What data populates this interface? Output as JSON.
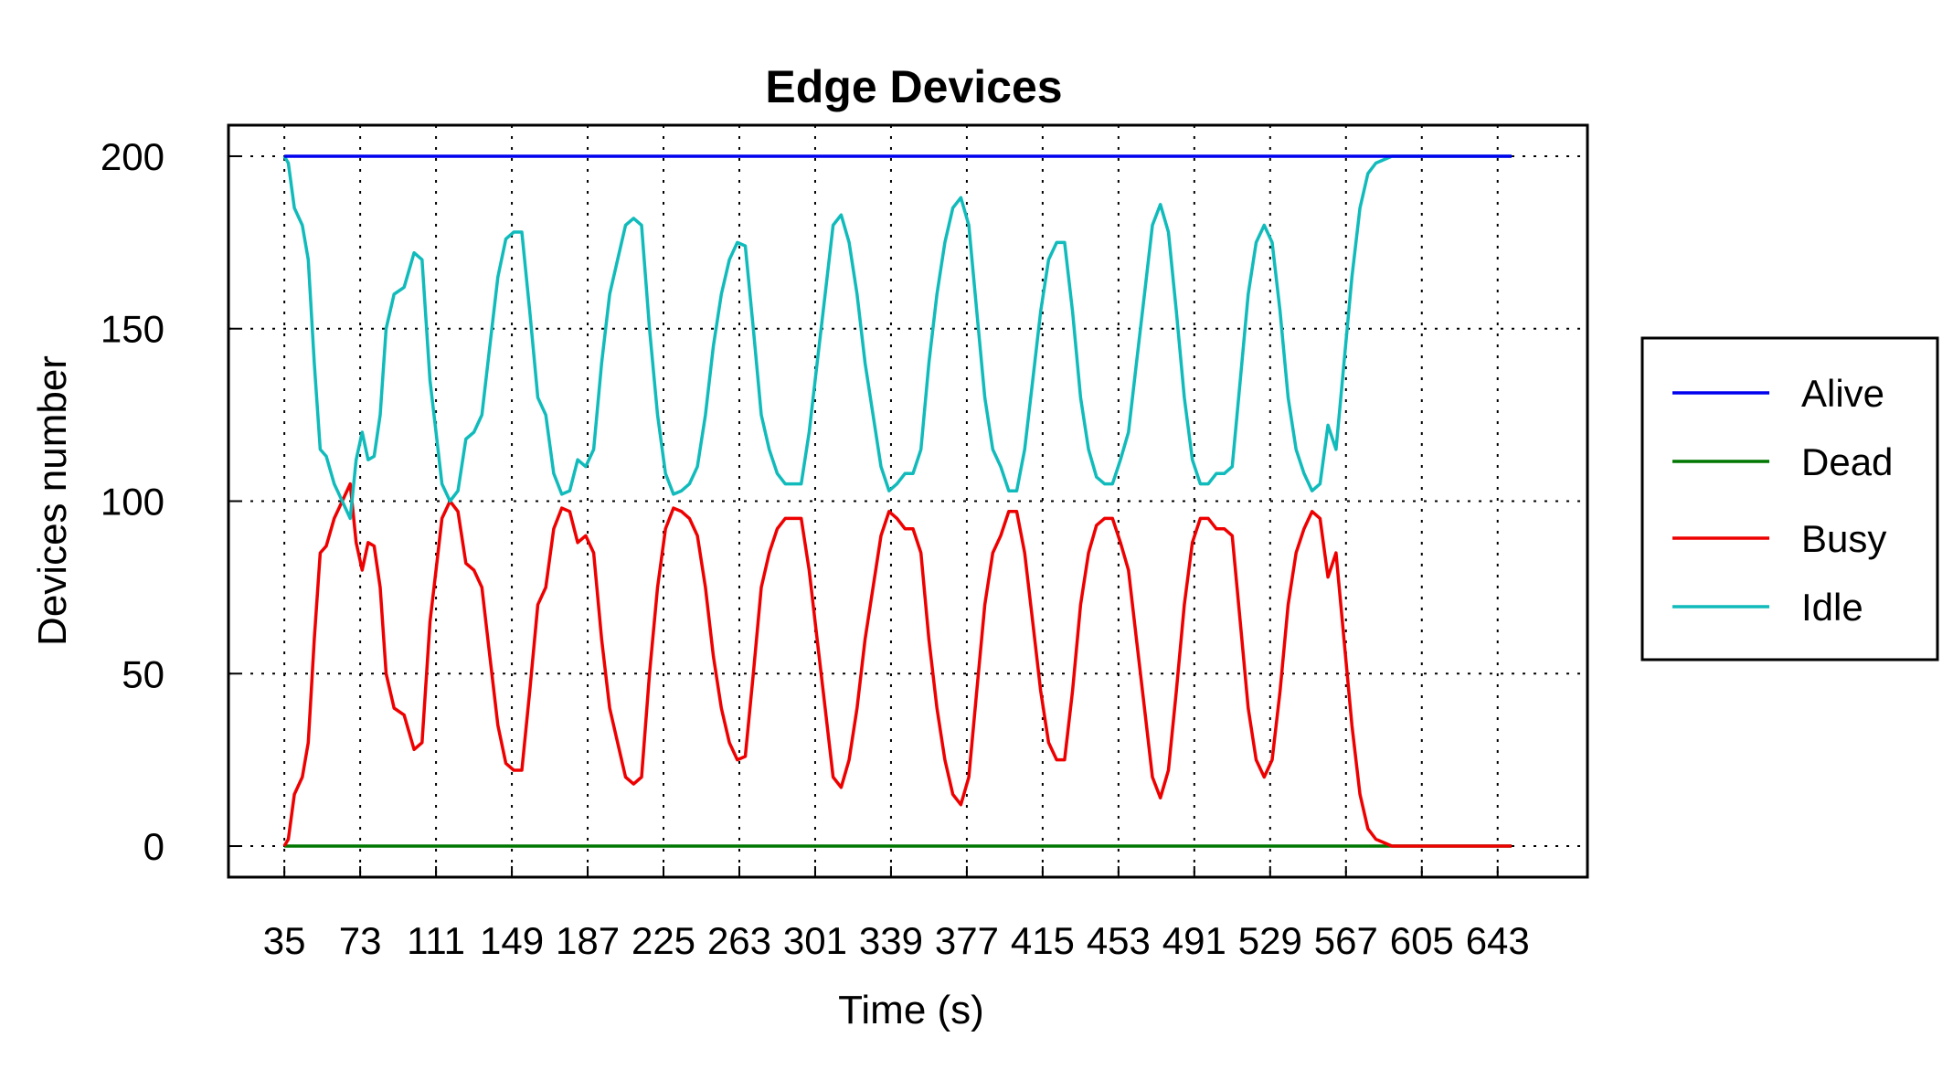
{
  "chart_data": {
    "type": "line",
    "title": "Edge Devices",
    "xlabel": "Time (s)",
    "ylabel": "Devices number",
    "x_tick_labels": [
      "35",
      "73",
      "111",
      "149",
      "187",
      "225",
      "263",
      "301",
      "339",
      "377",
      "415",
      "453",
      "491",
      "529",
      "567",
      "605",
      "643"
    ],
    "x_ticks": [
      35,
      73,
      111,
      149,
      187,
      225,
      263,
      301,
      339,
      377,
      415,
      453,
      491,
      529,
      567,
      605,
      643
    ],
    "y_tick_labels": [
      "0",
      "50",
      "100",
      "150",
      "200"
    ],
    "y_ticks": [
      0,
      50,
      100,
      150,
      200
    ],
    "xlim": [
      7,
      688
    ],
    "ylim": [
      -9,
      209
    ],
    "grid": true,
    "legend_position": "right",
    "series": [
      {
        "name": "Alive",
        "color": "#0000ee",
        "x": [
          35,
          650
        ],
        "y": [
          200,
          200
        ]
      },
      {
        "name": "Dead",
        "color": "#007700",
        "x": [
          35,
          650
        ],
        "y": [
          0,
          0
        ]
      },
      {
        "name": "Busy",
        "color": "#ee0000",
        "x": [
          35,
          37,
          40,
          44,
          47,
          50,
          53,
          56,
          60,
          64,
          68,
          71,
          74,
          77,
          80,
          83,
          86,
          90,
          95,
          100,
          104,
          108,
          111,
          114,
          118,
          122,
          126,
          130,
          134,
          138,
          142,
          146,
          150,
          154,
          158,
          162,
          166,
          170,
          174,
          178,
          182,
          186,
          190,
          194,
          198,
          202,
          206,
          210,
          214,
          218,
          222,
          226,
          230,
          234,
          238,
          242,
          246,
          250,
          254,
          258,
          262,
          266,
          270,
          274,
          278,
          282,
          286,
          290,
          294,
          298,
          302,
          306,
          310,
          314,
          318,
          322,
          326,
          330,
          334,
          338,
          342,
          346,
          350,
          354,
          358,
          362,
          366,
          370,
          374,
          378,
          382,
          386,
          390,
          394,
          398,
          402,
          406,
          410,
          414,
          418,
          422,
          426,
          430,
          434,
          438,
          442,
          446,
          450,
          454,
          458,
          462,
          466,
          470,
          474,
          478,
          482,
          486,
          490,
          494,
          498,
          502,
          506,
          510,
          514,
          518,
          522,
          526,
          530,
          534,
          538,
          542,
          546,
          550,
          554,
          558,
          562,
          566,
          570,
          574,
          578,
          582,
          586,
          590,
          594,
          598,
          602,
          606,
          610,
          614,
          618,
          622,
          626,
          630,
          634,
          638,
          642,
          646,
          650
        ],
        "y": [
          0,
          2,
          15,
          20,
          30,
          60,
          85,
          87,
          95,
          100,
          105,
          88,
          80,
          88,
          87,
          75,
          50,
          40,
          38,
          28,
          30,
          65,
          80,
          95,
          100,
          97,
          82,
          80,
          75,
          55,
          35,
          24,
          22,
          22,
          45,
          70,
          75,
          92,
          98,
          97,
          88,
          90,
          85,
          60,
          40,
          30,
          20,
          18,
          20,
          50,
          75,
          92,
          98,
          97,
          95,
          90,
          75,
          55,
          40,
          30,
          25,
          26,
          50,
          75,
          85,
          92,
          95,
          95,
          95,
          80,
          60,
          40,
          20,
          17,
          25,
          40,
          60,
          75,
          90,
          97,
          95,
          92,
          92,
          85,
          60,
          40,
          25,
          15,
          12,
          20,
          45,
          70,
          85,
          90,
          97,
          97,
          85,
          65,
          45,
          30,
          25,
          25,
          45,
          70,
          85,
          93,
          95,
          95,
          88,
          80,
          60,
          40,
          20,
          14,
          22,
          45,
          70,
          88,
          95,
          95,
          92,
          92,
          90,
          65,
          40,
          25,
          20,
          25,
          45,
          70,
          85,
          92,
          97,
          95,
          78,
          85,
          60,
          35,
          15,
          5,
          2,
          1,
          0,
          0,
          0,
          0,
          0,
          0,
          0,
          0,
          0,
          0,
          0,
          0,
          0,
          0,
          0,
          0
        ],
        "y_note": ""
      },
      {
        "name": "Idle",
        "color": "#11bbbb",
        "x": [
          35,
          37,
          40,
          44,
          47,
          50,
          53,
          56,
          60,
          64,
          68,
          71,
          74,
          77,
          80,
          83,
          86,
          90,
          95,
          100,
          104,
          108,
          111,
          114,
          118,
          122,
          126,
          130,
          134,
          138,
          142,
          146,
          150,
          154,
          158,
          162,
          166,
          170,
          174,
          178,
          182,
          186,
          190,
          194,
          198,
          202,
          206,
          210,
          214,
          218,
          222,
          226,
          230,
          234,
          238,
          242,
          246,
          250,
          254,
          258,
          262,
          266,
          270,
          274,
          278,
          282,
          286,
          290,
          294,
          298,
          302,
          306,
          310,
          314,
          318,
          322,
          326,
          330,
          334,
          338,
          342,
          346,
          350,
          354,
          358,
          362,
          366,
          370,
          374,
          378,
          382,
          386,
          390,
          394,
          398,
          402,
          406,
          410,
          414,
          418,
          422,
          426,
          430,
          434,
          438,
          442,
          446,
          450,
          454,
          458,
          462,
          466,
          470,
          474,
          478,
          482,
          486,
          490,
          494,
          498,
          502,
          506,
          510,
          514,
          518,
          522,
          526,
          530,
          534,
          538,
          542,
          546,
          550,
          554,
          558,
          562,
          566,
          570,
          574,
          578,
          582,
          586,
          590,
          594,
          598,
          602,
          606,
          610,
          614,
          618,
          622,
          626,
          630,
          634,
          638,
          642,
          646,
          650
        ],
        "y": [
          200,
          198,
          185,
          180,
          170,
          140,
          115,
          113,
          105,
          100,
          95,
          112,
          120,
          112,
          113,
          125,
          150,
          160,
          162,
          172,
          170,
          135,
          120,
          105,
          100,
          103,
          118,
          120,
          125,
          145,
          165,
          176,
          178,
          178,
          155,
          130,
          125,
          108,
          102,
          103,
          112,
          110,
          115,
          140,
          160,
          170,
          180,
          182,
          180,
          150,
          125,
          108,
          102,
          103,
          105,
          110,
          125,
          145,
          160,
          170,
          175,
          174,
          150,
          125,
          115,
          108,
          105,
          105,
          105,
          120,
          140,
          160,
          180,
          183,
          175,
          160,
          140,
          125,
          110,
          103,
          105,
          108,
          108,
          115,
          140,
          160,
          175,
          185,
          188,
          180,
          155,
          130,
          115,
          110,
          103,
          103,
          115,
          135,
          155,
          170,
          175,
          175,
          155,
          130,
          115,
          107,
          105,
          105,
          112,
          120,
          140,
          160,
          180,
          186,
          178,
          155,
          130,
          112,
          105,
          105,
          108,
          108,
          110,
          135,
          160,
          175,
          180,
          175,
          155,
          130,
          115,
          108,
          103,
          105,
          122,
          115,
          140,
          165,
          185,
          195,
          198,
          199,
          200,
          200,
          200,
          200,
          200,
          200,
          200,
          200,
          200,
          200,
          200,
          200,
          200,
          200,
          200,
          200
        ]
      }
    ]
  }
}
